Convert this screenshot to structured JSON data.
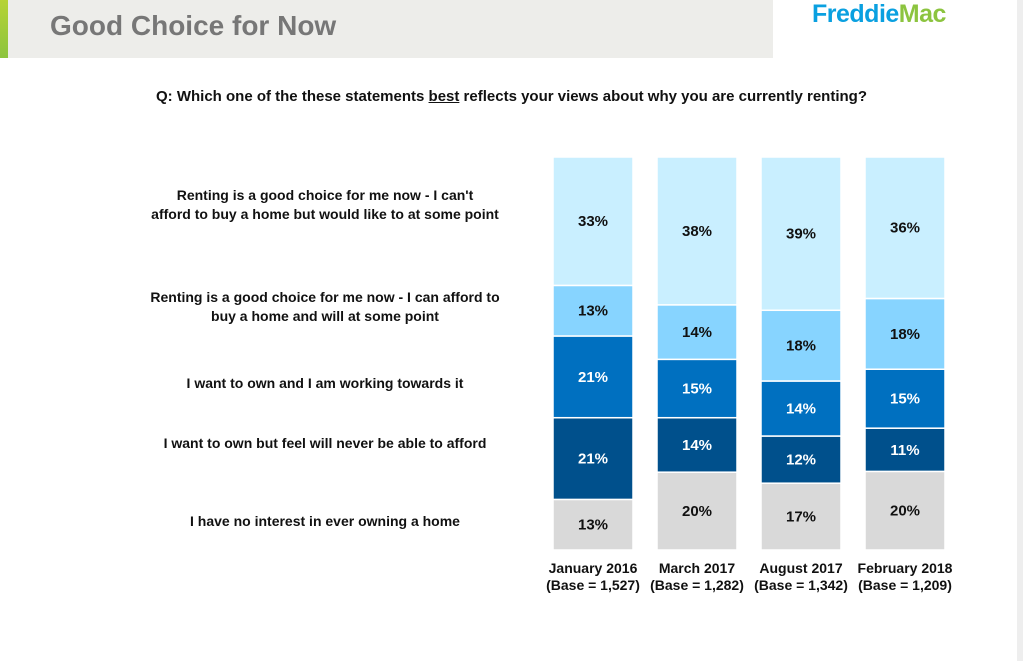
{
  "header": {
    "title": "Good Choice for Now",
    "logo_text_1": "Freddie",
    "logo_text_2": "Mac"
  },
  "question": {
    "prefix": "Q: Which one of the these statements ",
    "emphasis": "best",
    "suffix": " reflects your views about why you are currently renting?"
  },
  "chart_data": {
    "type": "bar",
    "stacked": true,
    "categories": [
      "January 2016",
      "March 2017",
      "August 2017",
      "February 2018"
    ],
    "bases": [
      "(Base = 1,527)",
      "(Base = 1,282)",
      "(Base = 1,342)",
      "(Base = 1,209)"
    ],
    "series": [
      {
        "name": "I have no interest in ever owning a home",
        "color": "#d9d9d9",
        "text_color": "#111111",
        "values": [
          13,
          20,
          17,
          20
        ]
      },
      {
        "name": "I want to own but feel will never be able to afford",
        "color": "#00508c",
        "text_color": "#ffffff",
        "values": [
          21,
          14,
          12,
          11
        ]
      },
      {
        "name": "I want to own and I am working towards it",
        "color": "#0070c0",
        "text_color": "#ffffff",
        "values": [
          21,
          15,
          14,
          15
        ]
      },
      {
        "name": "Renting is a good choice for me now - I can afford to buy a home and will at some point",
        "color": "#87d4ff",
        "text_color": "#111111",
        "values": [
          13,
          14,
          18,
          18
        ]
      },
      {
        "name": "Renting is a good choice for me now - I can't afford to buy a home but would like to at some point",
        "color": "#c9efff",
        "text_color": "#111111",
        "values": [
          33,
          38,
          39,
          36
        ]
      }
    ],
    "unit": "%"
  },
  "legend_lines": [
    [
      "Renting is a good choice for me now - I can't",
      "afford to buy a home but would like to at some point"
    ],
    [
      "Renting is a good choice for me now - I can afford to",
      "buy a home and will at some point"
    ],
    [
      "I want to own and I am working towards it"
    ],
    [
      "I want to own but feel will never be able to afford"
    ],
    [
      "I have no interest in ever owning a home"
    ]
  ]
}
